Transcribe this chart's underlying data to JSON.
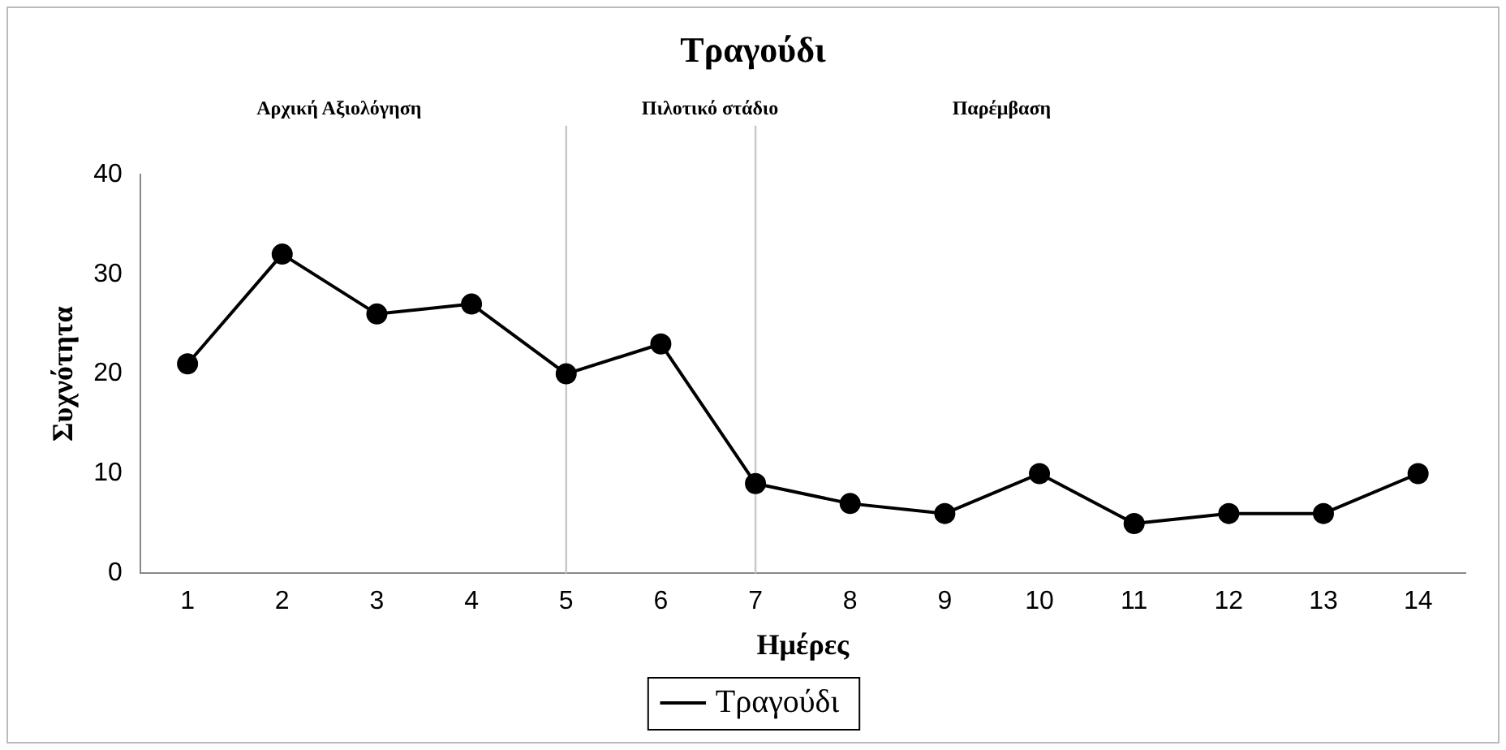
{
  "chart_data": {
    "type": "line",
    "title": "Τραγούδι",
    "xlabel": "Ημέρες",
    "ylabel": "Συχνότητα",
    "annotations": [
      "Αρχική Αξιολόγηση",
      "Πιλοτικό στάδιο",
      "Παρέμβαση"
    ],
    "x": [
      1,
      2,
      3,
      4,
      5,
      6,
      7,
      8,
      9,
      10,
      11,
      12,
      13,
      14
    ],
    "xlim": [
      0.5,
      14.5
    ],
    "xticks": [
      1,
      2,
      3,
      4,
      5,
      6,
      7,
      8,
      9,
      10,
      11,
      12,
      13,
      14
    ],
    "ylim": [
      0,
      40
    ],
    "yticks": [
      0,
      10,
      20,
      30,
      40
    ],
    "series": [
      {
        "name": "Τραγούδι",
        "color": "#000000",
        "values": [
          21,
          32,
          26,
          27,
          20,
          23,
          9,
          7,
          6,
          10,
          5,
          6,
          6,
          10
        ]
      }
    ],
    "ref_lines": [
      {
        "axis": "x",
        "value": 5,
        "color": "#c8c8c8"
      },
      {
        "axis": "x",
        "value": 7,
        "color": "#c8c8c8"
      }
    ],
    "marker": "circle",
    "line_style": "solid",
    "grid": false,
    "legend": "bottom"
  }
}
